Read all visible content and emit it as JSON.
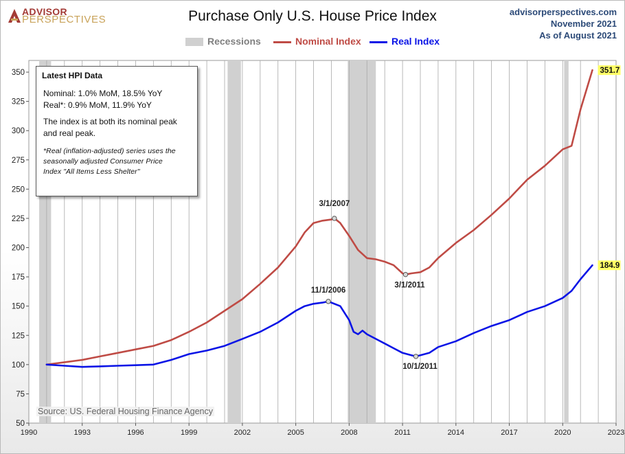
{
  "header": {
    "logo_line1": "ADVISOR",
    "logo_line2": "PERSPECTIVES",
    "title": "Purchase Only U.S. House Price Index",
    "site": "advisorperspectives.com",
    "date": "November 2021",
    "as_of": "As of August 2021"
  },
  "legend": {
    "recessions": "Recessions",
    "nominal": "Nominal Index",
    "real": "Real Index"
  },
  "infobox": {
    "heading": "Latest HPI Data",
    "nominal_line": "Nominal: 1.0% MoM, 18.5% YoY",
    "real_line": "Real*: 0.9% MoM, 11.9% YoY",
    "peak_line1": "The index is at both its nominal peak",
    "peak_line2": "and real peak.",
    "note_line1": "*Real (inflation-adjusted) series uses the",
    "note_line2": "seasonally adjusted Consumer Price",
    "note_line3": "Index \"All Items Less Shelter\""
  },
  "source": "Source: US. Federal Housing Finance Agency",
  "colors": {
    "nominal": "#bf4b45",
    "real": "#0a14e6",
    "recession": "#d0d0d0",
    "latest_label_bg": "#ffff66"
  },
  "chart_data": {
    "type": "line",
    "title": "Purchase Only U.S. House Price Index",
    "xlim": [
      1990,
      2023
    ],
    "ylim": [
      50,
      360
    ],
    "x_ticks": [
      1990,
      1993,
      1996,
      1999,
      2002,
      2005,
      2008,
      2011,
      2014,
      2017,
      2020,
      2023
    ],
    "y_ticks": [
      50,
      75,
      100,
      125,
      150,
      175,
      200,
      225,
      250,
      275,
      300,
      325,
      350
    ],
    "grid": "vertical-yearly",
    "recessions": [
      [
        1990.58,
        1991.25
      ],
      [
        2001.17,
        2001.92
      ],
      [
        2007.92,
        2009.5
      ],
      [
        2020.08,
        2020.33
      ]
    ],
    "series": [
      {
        "name": "Nominal Index",
        "x": [
          1991.0,
          1992.0,
          1993.0,
          1994.0,
          1995.0,
          1996.0,
          1997.0,
          1998.0,
          1999.0,
          2000.0,
          2001.0,
          2002.0,
          2003.0,
          2004.0,
          2005.0,
          2005.5,
          2006.0,
          2006.5,
          2007.0,
          2007.17,
          2007.5,
          2008.0,
          2008.5,
          2009.0,
          2009.5,
          2010.0,
          2010.5,
          2011.0,
          2011.17,
          2011.5,
          2012.0,
          2012.5,
          2013.0,
          2014.0,
          2015.0,
          2016.0,
          2017.0,
          2018.0,
          2019.0,
          2020.0,
          2020.5,
          2021.0,
          2021.67
        ],
        "values": [
          100,
          102,
          104,
          107,
          110,
          113,
          116,
          121,
          128,
          136,
          146,
          156,
          169,
          183,
          201,
          213,
          221,
          223,
          224,
          225,
          221,
          210,
          198,
          191,
          190,
          188,
          185,
          178,
          177,
          178,
          179,
          183,
          191,
          204,
          215,
          228,
          242,
          258,
          270,
          284,
          287,
          318,
          351.7
        ]
      },
      {
        "name": "Real Index",
        "x": [
          1991.0,
          1992.0,
          1993.0,
          1994.0,
          1995.0,
          1996.0,
          1997.0,
          1998.0,
          1999.0,
          2000.0,
          2001.0,
          2002.0,
          2003.0,
          2004.0,
          2005.0,
          2005.5,
          2006.0,
          2006.5,
          2006.83,
          2007.0,
          2007.5,
          2008.0,
          2008.25,
          2008.5,
          2008.75,
          2009.0,
          2009.5,
          2010.0,
          2010.5,
          2011.0,
          2011.5,
          2011.75,
          2012.0,
          2012.5,
          2013.0,
          2014.0,
          2015.0,
          2016.0,
          2017.0,
          2018.0,
          2019.0,
          2020.0,
          2020.5,
          2021.0,
          2021.67
        ],
        "values": [
          100,
          99,
          98,
          98.5,
          99,
          99.5,
          100,
          104,
          109,
          112,
          116,
          122,
          128,
          136,
          146,
          150,
          152,
          153,
          154,
          153,
          150,
          138,
          128,
          126,
          129,
          126,
          122,
          118,
          114,
          110,
          108,
          107,
          108,
          110,
          115,
          120,
          127,
          133,
          138,
          145,
          150,
          157,
          163,
          173,
          184.9
        ]
      }
    ],
    "annotations": [
      {
        "label": "3/1/2007",
        "x": 2007.17,
        "y": 225,
        "series": "Nominal Index"
      },
      {
        "label": "11/1/2006",
        "x": 2006.83,
        "y": 154,
        "series": "Real Index"
      },
      {
        "label": "3/1/2011",
        "x": 2011.17,
        "y": 177,
        "series": "Nominal Index"
      },
      {
        "label": "10/1/2011",
        "x": 2011.75,
        "y": 107,
        "series": "Real Index"
      }
    ],
    "latest_labels": [
      {
        "label": "351.7",
        "value": 351.7,
        "series": "Nominal Index"
      },
      {
        "label": "184.9",
        "value": 184.9,
        "series": "Real Index"
      }
    ]
  }
}
